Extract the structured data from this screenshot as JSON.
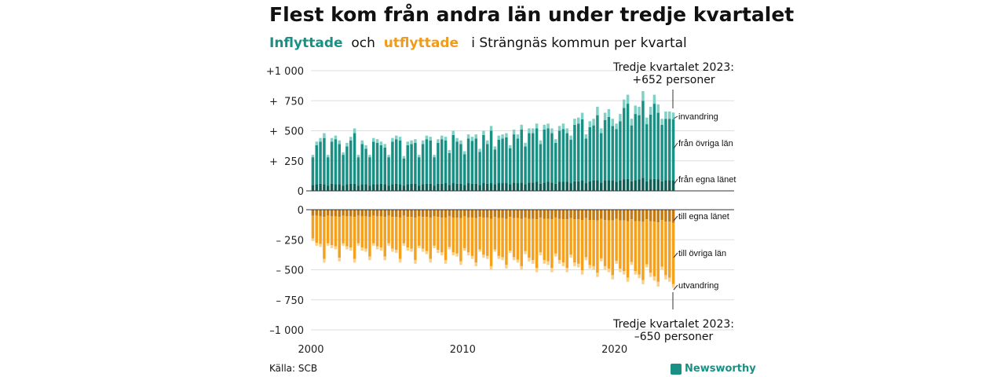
{
  "title": "Flest kom från andra län under tredje kvartalet",
  "subtitle": {
    "part1": "Inflyttade",
    "part2": "och",
    "part3": "utflyttade",
    "part4": "i Strängnäs  kommun  per  kvartal"
  },
  "source": "Källa: SCB",
  "brand": "Newsworthy",
  "colors": {
    "in_own": "#0d5e55",
    "in_other": "#1a9084",
    "in_imm": "#7fd1c6",
    "out_own": "#c47a10",
    "out_other": "#f5a11d",
    "out_emig": "#fbd08a"
  },
  "chart_data": {
    "type": "bar",
    "stacked": true,
    "x_start": 2000,
    "x_end": 2023.75,
    "x_ticks": [
      "2000",
      "2010",
      "2020"
    ],
    "y_ticks_top": [
      "+1 000",
      "+  750",
      "+  500",
      "+  250",
      "0"
    ],
    "y_ticks_bottom": [
      "0",
      "– 250",
      "– 500",
      "– 750",
      "–1 000"
    ],
    "ylim_top": [
      0,
      1000
    ],
    "ylim_bottom": [
      -1000,
      0
    ],
    "annotations": {
      "top_line1": "Tredje kvartalet 2023:",
      "top_line2": "+652 personer",
      "bottom_line1": "Tredje kvartalet 2023:",
      "bottom_line2": "–650 personer"
    },
    "labels_in": [
      "invandring",
      "från övriga län",
      "från egna länet"
    ],
    "labels_out": [
      "till egna länet",
      "till övriga län",
      "utvandring"
    ],
    "in_total": [
      300,
      410,
      440,
      480,
      300,
      440,
      460,
      420,
      320,
      400,
      450,
      520,
      300,
      420,
      380,
      300,
      440,
      430,
      410,
      390,
      300,
      440,
      460,
      450,
      290,
      410,
      420,
      430,
      300,
      420,
      460,
      450,
      300,
      430,
      460,
      450,
      340,
      500,
      440,
      420,
      330,
      470,
      450,
      470,
      350,
      500,
      420,
      540,
      370,
      460,
      470,
      480,
      380,
      510,
      470,
      550,
      400,
      520,
      520,
      560,
      420,
      550,
      560,
      520,
      430,
      540,
      560,
      520,
      460,
      600,
      610,
      650,
      470,
      580,
      600,
      700,
      520,
      650,
      680,
      600,
      560,
      640,
      760,
      800,
      600,
      710,
      700,
      830,
      610,
      700,
      800,
      720,
      600,
      660,
      660,
      652
    ],
    "in_own": [
      50,
      55,
      60,
      55,
      45,
      60,
      55,
      55,
      45,
      55,
      60,
      60,
      45,
      55,
      55,
      45,
      55,
      55,
      60,
      55,
      45,
      55,
      60,
      55,
      45,
      55,
      60,
      60,
      45,
      55,
      60,
      60,
      45,
      60,
      60,
      65,
      50,
      65,
      60,
      60,
      50,
      65,
      60,
      60,
      50,
      65,
      60,
      65,
      55,
      65,
      65,
      65,
      55,
      70,
      65,
      70,
      55,
      70,
      70,
      75,
      60,
      70,
      75,
      70,
      60,
      75,
      75,
      75,
      65,
      80,
      80,
      85,
      65,
      80,
      85,
      90,
      70,
      85,
      90,
      85,
      75,
      85,
      95,
      100,
      80,
      90,
      95,
      110,
      80,
      95,
      100,
      95,
      80,
      90,
      90,
      90
    ],
    "in_imm": [
      20,
      30,
      30,
      40,
      20,
      30,
      30,
      30,
      20,
      30,
      30,
      40,
      20,
      30,
      30,
      20,
      30,
      30,
      30,
      30,
      20,
      30,
      30,
      30,
      20,
      30,
      30,
      30,
      20,
      30,
      30,
      30,
      20,
      30,
      30,
      30,
      25,
      35,
      30,
      30,
      25,
      35,
      35,
      35,
      25,
      35,
      30,
      40,
      25,
      35,
      35,
      35,
      25,
      40,
      35,
      40,
      30,
      40,
      40,
      40,
      30,
      40,
      40,
      40,
      30,
      40,
      45,
      40,
      35,
      50,
      50,
      55,
      35,
      50,
      55,
      70,
      40,
      60,
      65,
      60,
      45,
      60,
      70,
      75,
      55,
      70,
      70,
      80,
      55,
      65,
      75,
      70,
      50,
      60,
      60,
      55
    ],
    "out_total": [
      260,
      300,
      310,
      440,
      300,
      320,
      330,
      430,
      300,
      330,
      340,
      440,
      300,
      340,
      350,
      420,
      300,
      330,
      340,
      420,
      300,
      350,
      360,
      440,
      300,
      340,
      350,
      450,
      320,
      350,
      370,
      440,
      320,
      360,
      380,
      450,
      330,
      380,
      390,
      460,
      340,
      380,
      410,
      470,
      350,
      400,
      410,
      500,
      350,
      410,
      420,
      490,
      360,
      420,
      440,
      500,
      370,
      430,
      450,
      520,
      380,
      450,
      460,
      520,
      390,
      450,
      470,
      520,
      400,
      470,
      480,
      540,
      420,
      490,
      500,
      560,
      430,
      500,
      520,
      580,
      450,
      520,
      540,
      600,
      460,
      540,
      570,
      620,
      480,
      560,
      590,
      640,
      500,
      580,
      600,
      650
    ],
    "out_own": [
      50,
      50,
      55,
      60,
      50,
      55,
      55,
      60,
      50,
      55,
      55,
      60,
      50,
      55,
      55,
      60,
      50,
      55,
      55,
      60,
      50,
      60,
      60,
      65,
      50,
      60,
      60,
      65,
      55,
      60,
      60,
      65,
      55,
      60,
      65,
      65,
      55,
      65,
      65,
      70,
      55,
      65,
      65,
      70,
      60,
      65,
      65,
      75,
      60,
      70,
      70,
      75,
      60,
      70,
      70,
      75,
      65,
      75,
      75,
      80,
      65,
      75,
      75,
      80,
      65,
      75,
      80,
      80,
      70,
      80,
      80,
      85,
      70,
      85,
      85,
      90,
      75,
      85,
      90,
      90,
      75,
      90,
      90,
      95,
      80,
      95,
      95,
      100,
      80,
      95,
      100,
      105,
      85,
      100,
      100,
      110
    ],
    "out_emig": [
      20,
      25,
      25,
      30,
      20,
      25,
      25,
      30,
      20,
      25,
      25,
      30,
      20,
      25,
      25,
      30,
      20,
      25,
      25,
      30,
      20,
      25,
      25,
      30,
      20,
      25,
      25,
      30,
      20,
      25,
      25,
      30,
      20,
      25,
      25,
      30,
      20,
      25,
      25,
      30,
      20,
      25,
      25,
      30,
      20,
      25,
      25,
      30,
      20,
      25,
      25,
      30,
      20,
      25,
      25,
      30,
      25,
      30,
      30,
      35,
      25,
      30,
      30,
      35,
      25,
      30,
      30,
      35,
      25,
      30,
      30,
      35,
      25,
      30,
      30,
      35,
      25,
      30,
      30,
      35,
      25,
      30,
      30,
      35,
      25,
      30,
      30,
      35,
      25,
      35,
      35,
      40,
      25,
      35,
      35,
      30
    ]
  }
}
